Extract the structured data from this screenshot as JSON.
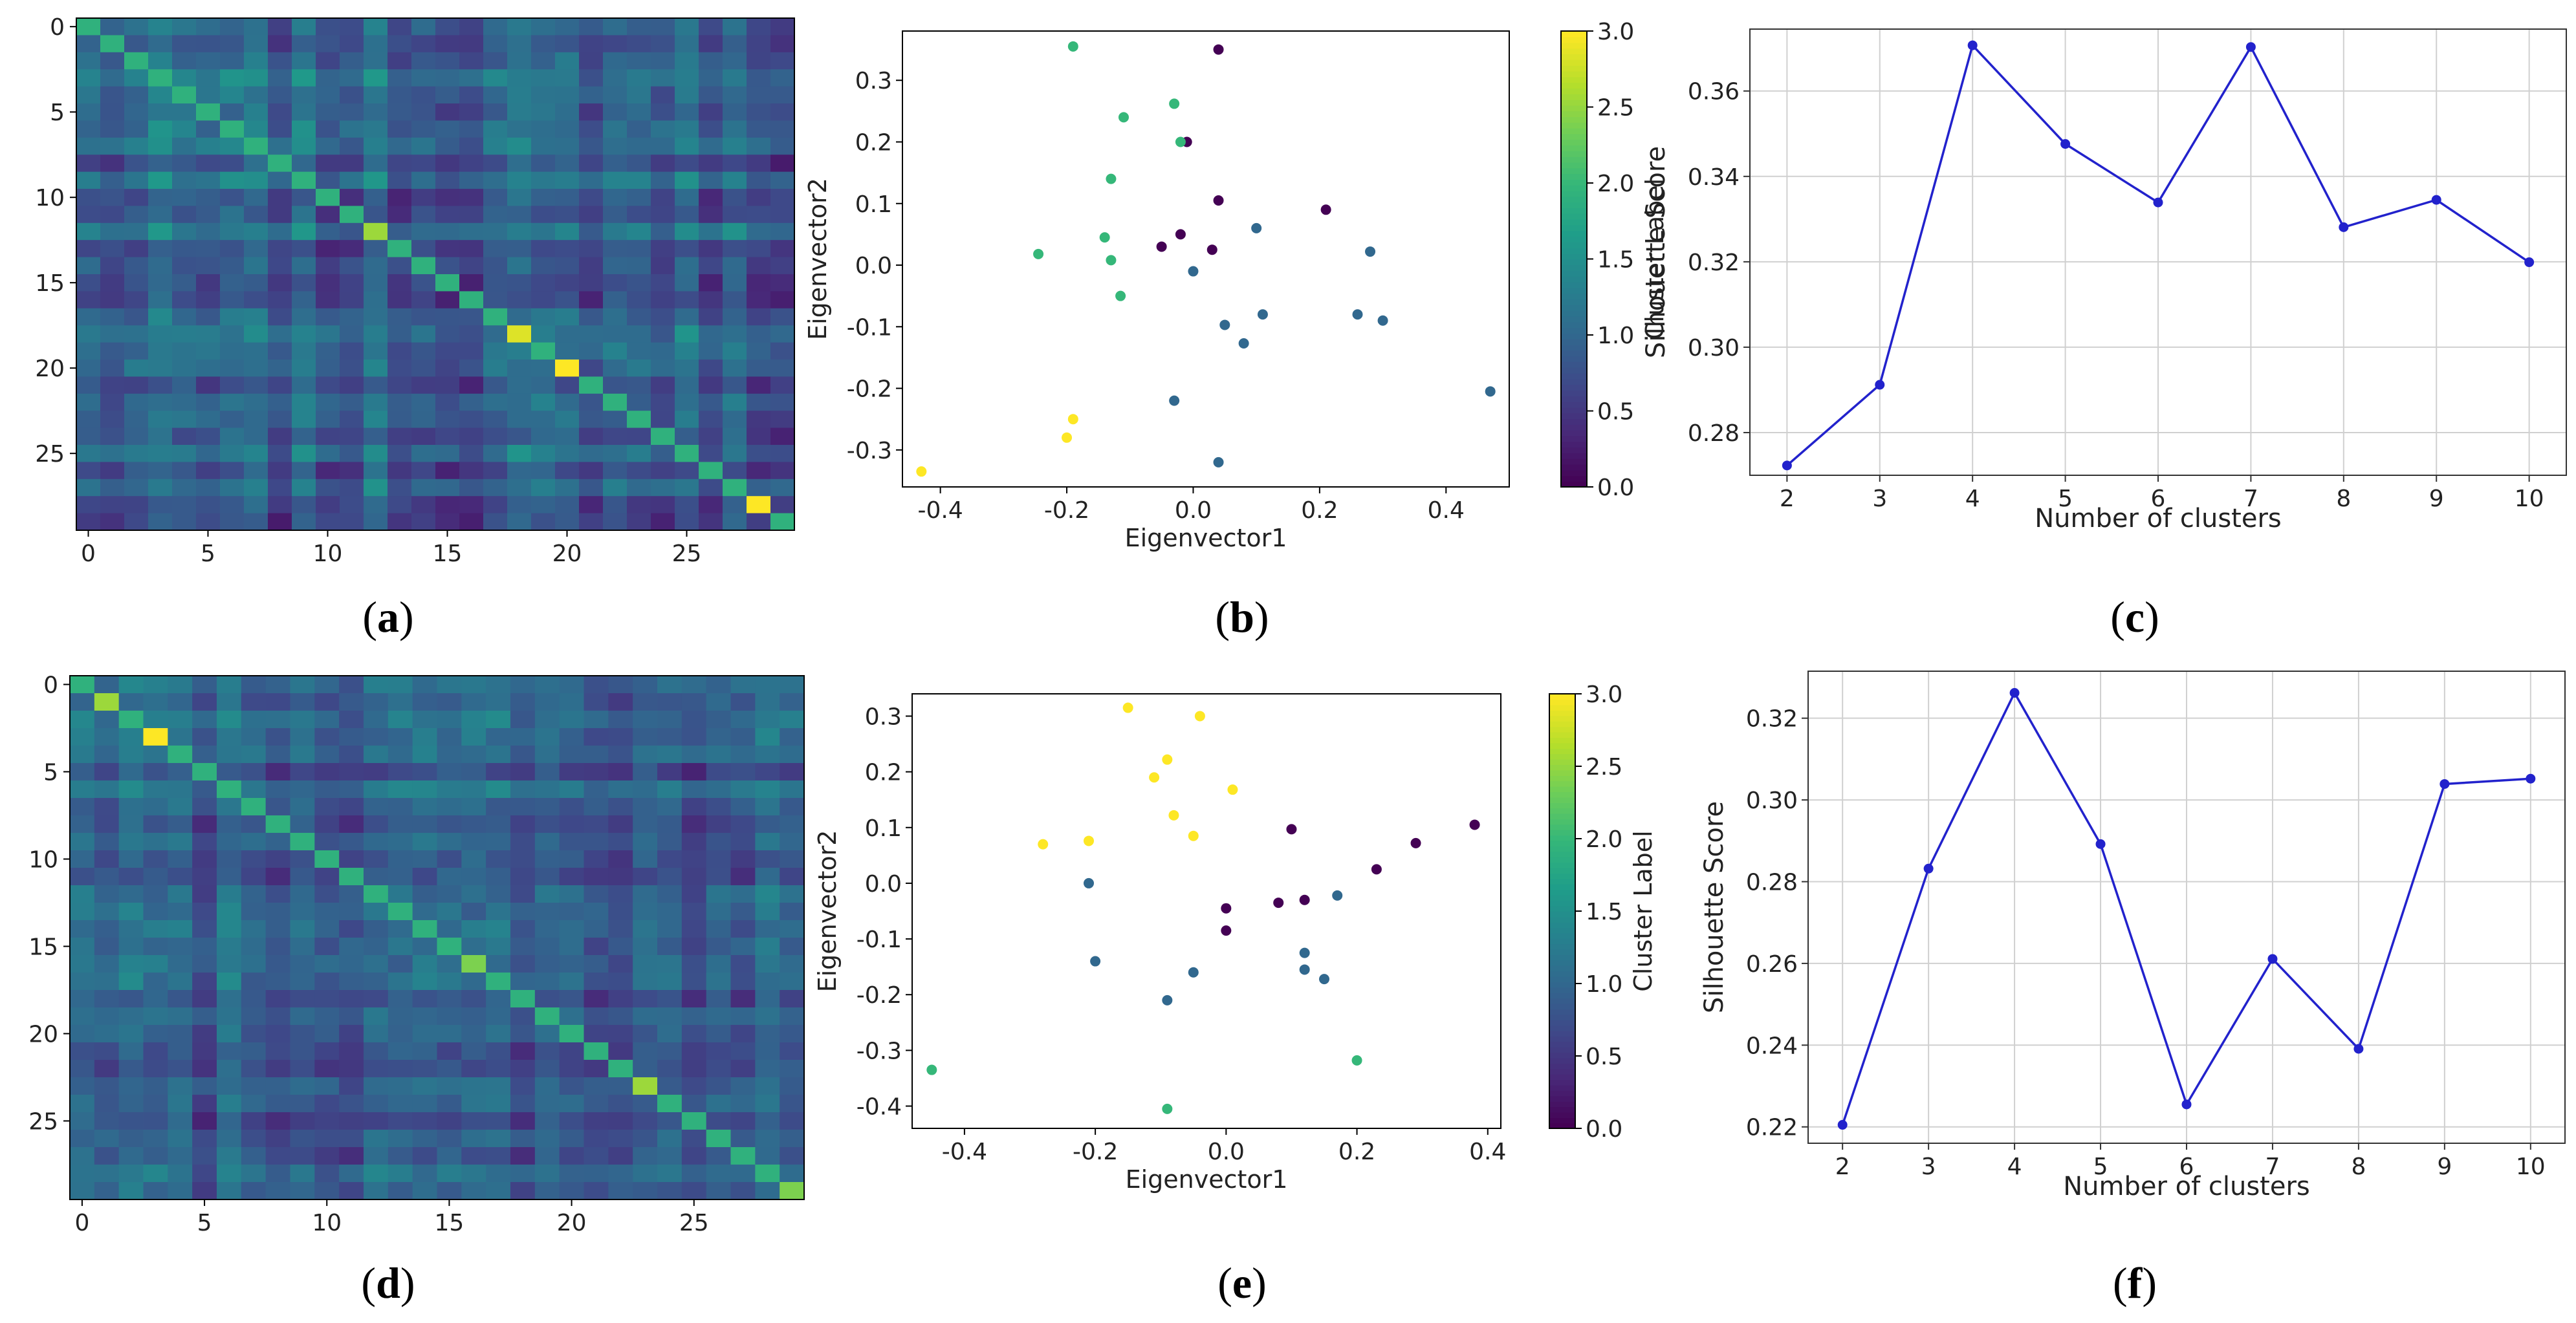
{
  "panel_labels": {
    "a": "a",
    "b": "b",
    "c": "c",
    "d": "d",
    "e": "e",
    "f": "f"
  },
  "colors": {
    "viridis": [
      "#440154",
      "#482878",
      "#3e4989",
      "#31688e",
      "#26828e",
      "#1f9e89",
      "#35b779",
      "#6ece58",
      "#b5de2b",
      "#fde725"
    ],
    "line": "#2222cc",
    "grid": "#d0d0d0"
  },
  "chart_data": [
    {
      "id": "a",
      "type": "heatmap",
      "title": "",
      "x_ticks": [
        "0",
        "5",
        "10",
        "15",
        "20",
        "25"
      ],
      "y_ticks": [
        "0",
        "5",
        "10",
        "15",
        "20",
        "25"
      ],
      "size": 30,
      "highlight_cells": [
        {
          "index": 12,
          "value": 0.85
        },
        {
          "index": 18,
          "value": 0.95
        },
        {
          "index": 20,
          "value": 1.0
        },
        {
          "index": 28,
          "value": 1.0
        }
      ]
    },
    {
      "id": "b",
      "type": "scatter",
      "title": "",
      "xlabel": "Eigenvector1",
      "ylabel": "Eigenvector2",
      "xlim": [
        -0.46,
        0.5
      ],
      "ylim": [
        -0.36,
        0.38
      ],
      "x_ticks": [
        "-0.4",
        "-0.2",
        "0.0",
        "0.2",
        "0.4"
      ],
      "y_ticks": [
        "-0.3",
        "-0.2",
        "-0.1",
        "0.0",
        "0.1",
        "0.2",
        "0.3"
      ],
      "colorbar": {
        "label": "Cluster Label",
        "ticks": [
          "0.0",
          "0.5",
          "1.0",
          "1.5",
          "2.0",
          "2.5",
          "3.0"
        ],
        "range": [
          0,
          3
        ]
      },
      "points": [
        {
          "x": 0.04,
          "y": 0.35,
          "c": 0
        },
        {
          "x": -0.01,
          "y": 0.2,
          "c": 0
        },
        {
          "x": 0.04,
          "y": 0.105,
          "c": 0
        },
        {
          "x": 0.21,
          "y": 0.09,
          "c": 0
        },
        {
          "x": -0.02,
          "y": 0.05,
          "c": 0
        },
        {
          "x": -0.05,
          "y": 0.03,
          "c": 0
        },
        {
          "x": 0.03,
          "y": 0.025,
          "c": 0
        },
        {
          "x": 0.1,
          "y": 0.06,
          "c": 1
        },
        {
          "x": 0.28,
          "y": 0.022,
          "c": 1
        },
        {
          "x": 0.0,
          "y": -0.01,
          "c": 1
        },
        {
          "x": 0.11,
          "y": -0.08,
          "c": 1
        },
        {
          "x": 0.26,
          "y": -0.08,
          "c": 1
        },
        {
          "x": 0.3,
          "y": -0.09,
          "c": 1
        },
        {
          "x": 0.05,
          "y": -0.097,
          "c": 1
        },
        {
          "x": 0.08,
          "y": -0.127,
          "c": 1
        },
        {
          "x": -0.03,
          "y": -0.22,
          "c": 1
        },
        {
          "x": 0.04,
          "y": -0.32,
          "c": 1
        },
        {
          "x": 0.47,
          "y": -0.205,
          "c": 1
        },
        {
          "x": -0.19,
          "y": 0.355,
          "c": 2
        },
        {
          "x": -0.03,
          "y": 0.262,
          "c": 2
        },
        {
          "x": -0.11,
          "y": 0.24,
          "c": 2
        },
        {
          "x": -0.02,
          "y": 0.2,
          "c": 2
        },
        {
          "x": -0.13,
          "y": 0.14,
          "c": 2
        },
        {
          "x": -0.14,
          "y": 0.045,
          "c": 2
        },
        {
          "x": -0.245,
          "y": 0.018,
          "c": 2
        },
        {
          "x": -0.13,
          "y": 0.008,
          "c": 2
        },
        {
          "x": -0.115,
          "y": -0.05,
          "c": 2
        },
        {
          "x": -0.19,
          "y": -0.25,
          "c": 3
        },
        {
          "x": -0.2,
          "y": -0.28,
          "c": 3
        },
        {
          "x": -0.43,
          "y": -0.335,
          "c": 3
        }
      ]
    },
    {
      "id": "c",
      "type": "line",
      "title": "",
      "xlabel": "Number of clusters",
      "ylabel": "Silhouette Score",
      "x": [
        2,
        3,
        4,
        5,
        6,
        7,
        8,
        9,
        10
      ],
      "values": [
        0.2723,
        0.2912,
        0.3707,
        0.3476,
        0.3339,
        0.3703,
        0.3281,
        0.3345,
        0.3199
      ],
      "xlim": [
        1.6,
        10.4
      ],
      "ylim": [
        0.27,
        0.3745
      ],
      "x_ticks": [
        "2",
        "3",
        "4",
        "5",
        "6",
        "7",
        "8",
        "9",
        "10"
      ],
      "y_ticks": [
        "0.28",
        "0.30",
        "0.32",
        "0.34",
        "0.36"
      ],
      "grid": true
    },
    {
      "id": "d",
      "type": "heatmap",
      "title": "",
      "x_ticks": [
        "0",
        "5",
        "10",
        "15",
        "20",
        "25"
      ],
      "y_ticks": [
        "0",
        "5",
        "10",
        "15",
        "20",
        "25"
      ],
      "size": 30,
      "highlight_cells": [
        {
          "index": 1,
          "value": 0.85
        },
        {
          "index": 3,
          "value": 1.0
        },
        {
          "index": 16,
          "value": 0.8
        },
        {
          "index": 23,
          "value": 0.85
        },
        {
          "index": 29,
          "value": 0.8
        }
      ]
    },
    {
      "id": "e",
      "type": "scatter",
      "title": "",
      "xlabel": "Eigenvector1",
      "ylabel": "Eigenvector2",
      "xlim": [
        -0.48,
        0.42
      ],
      "ylim": [
        -0.44,
        0.34
      ],
      "x_ticks": [
        "-0.4",
        "-0.2",
        "0.0",
        "0.2",
        "0.4"
      ],
      "y_ticks": [
        "-0.4",
        "-0.3",
        "-0.2",
        "-0.1",
        "0.0",
        "0.1",
        "0.2",
        "0.3"
      ],
      "colorbar": {
        "label": "Cluster Label",
        "ticks": [
          "0.0",
          "0.5",
          "1.0",
          "1.5",
          "2.0",
          "2.5",
          "3.0"
        ],
        "range": [
          0,
          3
        ]
      },
      "points": [
        {
          "x": -0.15,
          "y": 0.315,
          "c": 3
        },
        {
          "x": -0.04,
          "y": 0.3,
          "c": 3
        },
        {
          "x": -0.09,
          "y": 0.222,
          "c": 3
        },
        {
          "x": -0.11,
          "y": 0.19,
          "c": 3
        },
        {
          "x": 0.01,
          "y": 0.168,
          "c": 3
        },
        {
          "x": -0.08,
          "y": 0.122,
          "c": 3
        },
        {
          "x": -0.05,
          "y": 0.085,
          "c": 3
        },
        {
          "x": -0.28,
          "y": 0.07,
          "c": 3
        },
        {
          "x": -0.21,
          "y": 0.076,
          "c": 3
        },
        {
          "x": 0.38,
          "y": 0.105,
          "c": 0
        },
        {
          "x": 0.1,
          "y": 0.097,
          "c": 0
        },
        {
          "x": 0.29,
          "y": 0.072,
          "c": 0
        },
        {
          "x": 0.23,
          "y": 0.025,
          "c": 0
        },
        {
          "x": 0.08,
          "y": -0.035,
          "c": 0
        },
        {
          "x": 0.12,
          "y": -0.03,
          "c": 0
        },
        {
          "x": 0.0,
          "y": -0.045,
          "c": 0
        },
        {
          "x": 0.0,
          "y": -0.085,
          "c": 0
        },
        {
          "x": -0.21,
          "y": 0.0,
          "c": 1
        },
        {
          "x": 0.17,
          "y": -0.022,
          "c": 1
        },
        {
          "x": 0.12,
          "y": -0.125,
          "c": 1
        },
        {
          "x": -0.2,
          "y": -0.14,
          "c": 1
        },
        {
          "x": 0.12,
          "y": -0.155,
          "c": 1
        },
        {
          "x": -0.05,
          "y": -0.16,
          "c": 1
        },
        {
          "x": 0.15,
          "y": -0.172,
          "c": 1
        },
        {
          "x": -0.09,
          "y": -0.21,
          "c": 1
        },
        {
          "x": -0.45,
          "y": -0.335,
          "c": 2
        },
        {
          "x": 0.2,
          "y": -0.318,
          "c": 2
        },
        {
          "x": -0.09,
          "y": -0.405,
          "c": 2
        }
      ]
    },
    {
      "id": "f",
      "type": "line",
      "title": "",
      "xlabel": "Number of clusters",
      "ylabel": "Silhouette Score",
      "x": [
        2,
        3,
        4,
        5,
        6,
        7,
        8,
        9,
        10
      ],
      "values": [
        0.2205,
        0.2832,
        0.3262,
        0.2892,
        0.2255,
        0.2611,
        0.2391,
        0.3039,
        0.3052
      ],
      "xlim": [
        1.6,
        10.4
      ],
      "ylim": [
        0.216,
        0.3315
      ],
      "x_ticks": [
        "2",
        "3",
        "4",
        "5",
        "6",
        "7",
        "8",
        "9",
        "10"
      ],
      "y_ticks": [
        "0.22",
        "0.24",
        "0.26",
        "0.28",
        "0.30",
        "0.32"
      ],
      "grid": true
    }
  ]
}
